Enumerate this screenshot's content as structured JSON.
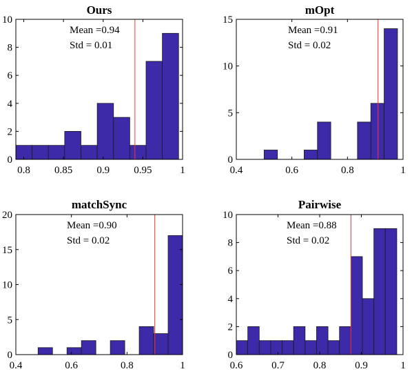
{
  "chart_data": [
    {
      "type": "bar",
      "title": "Ours",
      "mean_label": "Mean =0.94",
      "std_label": "Std = 0.01",
      "mean": 0.94,
      "xlim": [
        0.79,
        1.0
      ],
      "ylim": [
        0,
        10
      ],
      "xticks": [
        {
          "v": 0.8,
          "label": "0.8"
        },
        {
          "v": 0.85,
          "label": "0.85"
        },
        {
          "v": 0.9,
          "label": "0.9"
        },
        {
          "v": 0.95,
          "label": "0.95"
        },
        {
          "v": 1.0,
          "label": "1"
        }
      ],
      "yticks": [
        {
          "v": 0,
          "label": "0"
        },
        {
          "v": 2,
          "label": "2"
        },
        {
          "v": 4,
          "label": "4"
        },
        {
          "v": 6,
          "label": "6"
        },
        {
          "v": 8,
          "label": "8"
        },
        {
          "v": 10,
          "label": "10"
        }
      ],
      "bins": [
        [
          0.79,
          0.8105,
          1
        ],
        [
          0.8105,
          0.831,
          1
        ],
        [
          0.831,
          0.8515,
          1
        ],
        [
          0.8515,
          0.872,
          2
        ],
        [
          0.872,
          0.8925,
          1
        ],
        [
          0.8925,
          0.913,
          4
        ],
        [
          0.913,
          0.9335,
          3
        ],
        [
          0.9335,
          0.954,
          1
        ],
        [
          0.954,
          0.9745,
          7
        ],
        [
          0.9745,
          0.995,
          9
        ]
      ]
    },
    {
      "type": "bar",
      "title": "mOpt",
      "mean_label": "Mean =0.91",
      "std_label": "Std = 0.02",
      "mean": 0.91,
      "xlim": [
        0.4,
        1.0
      ],
      "ylim": [
        0,
        15
      ],
      "xticks": [
        {
          "v": 0.4,
          "label": "0.4"
        },
        {
          "v": 0.6,
          "label": "0.6"
        },
        {
          "v": 0.8,
          "label": "0.8"
        },
        {
          "v": 1.0,
          "label": "1"
        }
      ],
      "yticks": [
        {
          "v": 0,
          "label": "0"
        },
        {
          "v": 5,
          "label": "5"
        },
        {
          "v": 10,
          "label": "10"
        },
        {
          "v": 15,
          "label": "15"
        }
      ],
      "bins": [
        [
          0.5,
          0.548,
          1
        ],
        [
          0.548,
          0.596,
          0
        ],
        [
          0.596,
          0.644,
          0
        ],
        [
          0.644,
          0.692,
          1
        ],
        [
          0.692,
          0.74,
          4
        ],
        [
          0.74,
          0.788,
          0
        ],
        [
          0.788,
          0.836,
          0
        ],
        [
          0.836,
          0.884,
          4
        ],
        [
          0.884,
          0.932,
          6
        ],
        [
          0.932,
          0.98,
          14
        ]
      ]
    },
    {
      "type": "bar",
      "title": "matchSync",
      "mean_label": "Mean =0.90",
      "std_label": "Std = 0.02",
      "mean": 0.9,
      "xlim": [
        0.4,
        1.0
      ],
      "ylim": [
        0,
        20
      ],
      "xticks": [
        {
          "v": 0.4,
          "label": "0.4"
        },
        {
          "v": 0.6,
          "label": "0.6"
        },
        {
          "v": 0.8,
          "label": "0.8"
        },
        {
          "v": 1.0,
          "label": "1"
        }
      ],
      "yticks": [
        {
          "v": 0,
          "label": "0"
        },
        {
          "v": 5,
          "label": "5"
        },
        {
          "v": 10,
          "label": "10"
        },
        {
          "v": 15,
          "label": "15"
        },
        {
          "v": 20,
          "label": "20"
        }
      ],
      "bins": [
        [
          0.48,
          0.532,
          1
        ],
        [
          0.532,
          0.584,
          0
        ],
        [
          0.584,
          0.636,
          1
        ],
        [
          0.636,
          0.688,
          2
        ],
        [
          0.688,
          0.74,
          0
        ],
        [
          0.74,
          0.792,
          2
        ],
        [
          0.792,
          0.844,
          0
        ],
        [
          0.844,
          0.896,
          4
        ],
        [
          0.896,
          0.948,
          3
        ],
        [
          0.948,
          1.0,
          17
        ]
      ]
    },
    {
      "type": "bar",
      "title": "Pairwise",
      "mean_label": "Mean =0.88",
      "std_label": "Std = 0.02",
      "mean": 0.875,
      "xlim": [
        0.6,
        1.0
      ],
      "ylim": [
        0,
        10
      ],
      "xticks": [
        {
          "v": 0.6,
          "label": "0.6"
        },
        {
          "v": 0.7,
          "label": "0.7"
        },
        {
          "v": 0.8,
          "label": "0.8"
        },
        {
          "v": 0.9,
          "label": "0.9"
        },
        {
          "v": 1.0,
          "label": "1"
        }
      ],
      "yticks": [
        {
          "v": 0,
          "label": "0"
        },
        {
          "v": 2,
          "label": "2"
        },
        {
          "v": 4,
          "label": "4"
        },
        {
          "v": 6,
          "label": "6"
        },
        {
          "v": 8,
          "label": "8"
        },
        {
          "v": 10,
          "label": "10"
        }
      ],
      "bins": [
        [
          0.6,
          0.6275,
          1
        ],
        [
          0.6275,
          0.655,
          2
        ],
        [
          0.655,
          0.6825,
          1
        ],
        [
          0.6825,
          0.71,
          1
        ],
        [
          0.71,
          0.7375,
          1
        ],
        [
          0.7375,
          0.765,
          2
        ],
        [
          0.765,
          0.7925,
          1
        ],
        [
          0.7925,
          0.82,
          2
        ],
        [
          0.82,
          0.8475,
          1
        ],
        [
          0.8475,
          0.875,
          2
        ],
        [
          0.875,
          0.9025,
          7
        ],
        [
          0.9025,
          0.93,
          4
        ],
        [
          0.93,
          0.9575,
          9
        ],
        [
          0.9575,
          0.985,
          9
        ]
      ]
    }
  ]
}
